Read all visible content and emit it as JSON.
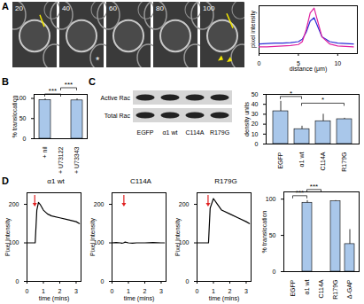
{
  "panels": [
    "A",
    "B",
    "C",
    "D"
  ],
  "images": {
    "frames": [
      "20",
      "40",
      "60",
      "80",
      "100"
    ],
    "asterisk_frame": "40",
    "asterisk": "*"
  },
  "blot": {
    "rows": [
      "Active Rac",
      "Total Rac"
    ],
    "lanes": [
      "EGFP",
      "α1 wt",
      "C114A",
      "R179G"
    ]
  },
  "chart_data": [
    {
      "type": "line",
      "x_label": "distance (μm)",
      "y_label": "pixel intensity",
      "xlim": [
        0,
        12.5
      ],
      "xticks": [
        0,
        5,
        10
      ],
      "ylim": [
        0,
        100
      ],
      "tick_labels": "x",
      "x": [
        0,
        1,
        2,
        3,
        4,
        5,
        5.5,
        6,
        6.5,
        7,
        7.5,
        8,
        9,
        10,
        11,
        12
      ],
      "series": [
        {
          "color": "#2b2bd6",
          "values": [
            20,
            21,
            22,
            22,
            23,
            25,
            30,
            45,
            68,
            75,
            55,
            35,
            25,
            22,
            21,
            20
          ]
        },
        {
          "color": "#e0209e",
          "values": [
            14,
            14,
            15,
            16,
            17,
            19,
            25,
            50,
            85,
            95,
            65,
            35,
            20,
            16,
            15,
            14
          ]
        }
      ]
    },
    {
      "type": "bar",
      "y_label": "% translocation",
      "categories": [
        "+ nil",
        "+ U73122",
        "+ U73343"
      ],
      "values": [
        96,
        0,
        95
      ],
      "errors": [
        3,
        0,
        4
      ],
      "color": "#a9c7ea",
      "ylim": [
        0,
        110
      ],
      "yticks": [
        0,
        50,
        100
      ],
      "annotations": [
        {
          "text": "***",
          "between": [
            "+ nil",
            "+ U73122"
          ]
        },
        {
          "text": "***",
          "between": [
            "+ U73122",
            "+ U73343"
          ]
        }
      ]
    },
    {
      "type": "bar",
      "y_label": "density units",
      "categories": [
        "EGFP",
        "α1 wt",
        "C114A",
        "R179G"
      ],
      "values": [
        33,
        15,
        23,
        25
      ],
      "errors": [
        10,
        3,
        7,
        1
      ],
      "color": "#a9c7ea",
      "ylim": [
        0,
        50
      ],
      "yticks": [
        0,
        10,
        20,
        30,
        40,
        50
      ],
      "annotations": [
        {
          "text": "*",
          "between": [
            "EGFP",
            "α1 wt"
          ]
        },
        {
          "text": "*",
          "between": [
            "α1 wt",
            "R179G"
          ]
        }
      ]
    },
    {
      "type": "line",
      "title": "α1 wt",
      "x_label": "time (mins)",
      "y_label": "Pixel Intensity",
      "xlim": [
        0,
        3.3
      ],
      "xticks": [
        0,
        1,
        2,
        3
      ],
      "ylim": [
        0,
        230
      ],
      "yticks": [
        0,
        100,
        200
      ],
      "arrow_time": 0.5,
      "x": [
        0,
        0.25,
        0.5,
        0.6,
        0.7,
        0.8,
        1,
        1.25,
        1.5,
        2,
        2.5,
        3,
        3.2
      ],
      "series": [
        {
          "color": "#000000",
          "values": [
            100,
            100,
            100,
            185,
            205,
            200,
            185,
            175,
            170,
            165,
            160,
            155,
            150
          ]
        }
      ]
    },
    {
      "type": "line",
      "title": "C114A",
      "x_label": "time (mins)",
      "y_label": "Pixel Intensity",
      "xlim": [
        0,
        3.3
      ],
      "xticks": [
        0,
        1,
        2,
        3
      ],
      "ylim": [
        0,
        230
      ],
      "yticks": [
        0,
        100,
        200
      ],
      "arrow_time": 0.75,
      "x": [
        0,
        0.25,
        0.5,
        0.6,
        0.7,
        0.8,
        1,
        1.25,
        1.5,
        2,
        2.5,
        3,
        3.2
      ],
      "series": [
        {
          "color": "#000000",
          "values": [
            100,
            101,
            100,
            99,
            100,
            102,
            100,
            99,
            100,
            100,
            101,
            100,
            100
          ]
        }
      ]
    },
    {
      "type": "line",
      "title": "R179G",
      "x_label": "time (mins)",
      "y_label": "Pixel Intensity",
      "xlim": [
        0,
        3.3
      ],
      "xticks": [
        0,
        1,
        2,
        3
      ],
      "ylim": [
        0,
        230
      ],
      "yticks": [
        0,
        100,
        200
      ],
      "arrow_time": 0.7,
      "x": [
        0,
        0.25,
        0.5,
        0.6,
        0.7,
        0.8,
        1,
        1.25,
        1.5,
        2,
        2.5,
        3,
        3.2
      ],
      "series": [
        {
          "color": "#000000",
          "values": [
            100,
            100,
            100,
            100,
            100,
            190,
            215,
            200,
            185,
            175,
            165,
            155,
            150
          ]
        }
      ]
    },
    {
      "type": "bar",
      "y_label": "% translocation",
      "categories": [
        "EGFP",
        "α1 wt",
        "C114A",
        "R179G",
        "Δ-GAP"
      ],
      "values": [
        0,
        95,
        0,
        97,
        38
      ],
      "errors": [
        0,
        3,
        0,
        1,
        20
      ],
      "color": "#a9c7ea",
      "ylim": [
        0,
        110
      ],
      "yticks": [
        0,
        50,
        100
      ],
      "annotations": [
        {
          "text": "***",
          "between": [
            "EGFP",
            "α1 wt"
          ]
        },
        {
          "text": "***",
          "between": [
            "α1 wt",
            "C114A"
          ]
        }
      ]
    }
  ]
}
